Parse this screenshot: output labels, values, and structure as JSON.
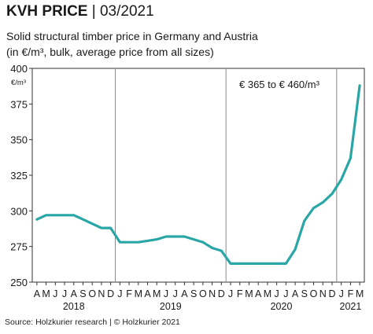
{
  "header": {
    "title_bold": "KVH PRICE",
    "title_sep": " | ",
    "title_date": "03/2021",
    "subtitle_line1": "Solid structural timber price in Germany and Austria",
    "subtitle_line2": "(in €/m³, bulk, average price from all sizes)"
  },
  "footer": {
    "source": "Source: Holzkurier research | © Holzkurier 2021"
  },
  "colors": {
    "line": "#2aa6a6",
    "grid": "#8a8a8a",
    "axis": "#333333"
  },
  "chart_data": {
    "type": "line",
    "ylabel": "€/m³",
    "ylim": [
      250,
      400
    ],
    "yticks": [
      250,
      275,
      300,
      325,
      350,
      375,
      400
    ],
    "grid": "vertical lines at year boundaries",
    "annotation": "€ 365 to € 460/m³",
    "x": [
      "2018-04",
      "2018-05",
      "2018-06",
      "2018-07",
      "2018-08",
      "2018-09",
      "2018-10",
      "2018-11",
      "2018-12",
      "2019-01",
      "2019-02",
      "2019-03",
      "2019-04",
      "2019-05",
      "2019-06",
      "2019-07",
      "2019-08",
      "2019-09",
      "2019-10",
      "2019-11",
      "2019-12",
      "2020-01",
      "2020-02",
      "2020-03",
      "2020-04",
      "2020-05",
      "2020-06",
      "2020-07",
      "2020-08",
      "2020-09",
      "2020-10",
      "2020-11",
      "2020-12",
      "2021-01",
      "2021-02",
      "2021-03"
    ],
    "month_labels": [
      "A",
      "M",
      "J",
      "J",
      "A",
      "S",
      "O",
      "N",
      "D",
      "J",
      "F",
      "M",
      "A",
      "M",
      "J",
      "J",
      "A",
      "S",
      "O",
      "N",
      "D",
      "J",
      "F",
      "M",
      "A",
      "M",
      "J",
      "J",
      "A",
      "S",
      "O",
      "N",
      "D",
      "J",
      "F",
      "M"
    ],
    "year_labels": [
      {
        "label": "2018",
        "center_index": 4
      },
      {
        "label": "2019",
        "center_index": 14.5
      },
      {
        "label": "2020",
        "center_index": 26.5
      },
      {
        "label": "2021",
        "center_index": 34
      }
    ],
    "series": [
      {
        "values": [
          294,
          297,
          297,
          297,
          297,
          294,
          291,
          288,
          288,
          278,
          278,
          278,
          279,
          280,
          282,
          282,
          282,
          280,
          278,
          274,
          272,
          263,
          263,
          263,
          263,
          263,
          263,
          263,
          273,
          293,
          302,
          306,
          312,
          322,
          337,
          388
        ]
      }
    ]
  }
}
